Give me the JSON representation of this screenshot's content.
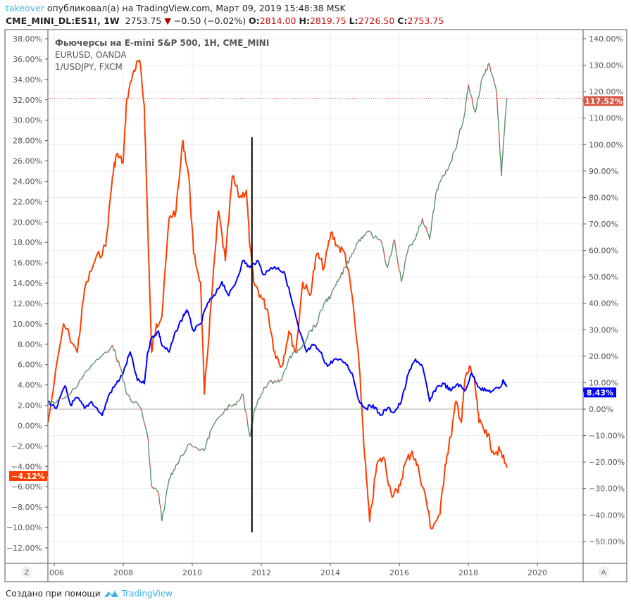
{
  "header": {
    "user": "takeover",
    "published": "опубликовал(а) на TradingView.com, Март 09, 2019 15:48:38 MSK",
    "symbol": "CME_MINI_DL:ES1!, 1W",
    "last": "2753.75",
    "change": "−0.50 (−0.02%)",
    "o_label": "O:",
    "o": "2814.00",
    "h_label": "H:",
    "h": "2819.75",
    "l_label": "L:",
    "l": "2726.50",
    "c_label": "C:",
    "c": "2753.75"
  },
  "footer": {
    "text": "Создано при помощи",
    "brand": "TradingView"
  },
  "axis_buttons": {
    "left": "Z",
    "right": "A"
  },
  "chart_data": {
    "type": "line",
    "legend": [
      "Фьючерсы на E-mini S&P 500, 1H, CME_MINI",
      "EURUSD, OANDA",
      "1/USDJPY, FXCM"
    ],
    "legend_position": "top-left",
    "xlim": [
      2005.8,
      2021.2
    ],
    "x_ticks": [
      "006",
      "2008",
      "2010",
      "2012",
      "2014",
      "2016",
      "2018",
      "2020"
    ],
    "x_tick_values": [
      2006,
      2008,
      2010,
      2012,
      2014,
      2016,
      2018,
      2020
    ],
    "left_axis": {
      "ylim": [
        -13,
        39
      ],
      "ticks": [
        38,
        36,
        34,
        32,
        30,
        28,
        26,
        24,
        22,
        20,
        18,
        16,
        14,
        12,
        10,
        8,
        6,
        4,
        2,
        0,
        -2,
        -4,
        -6,
        -8,
        -10,
        -12
      ],
      "labels": [
        "38.00%",
        "36.00%",
        "34.00%",
        "32.00%",
        "30.00%",
        "28.00%",
        "26.00%",
        "24.00%",
        "22.00%",
        "20.00%",
        "18.00%",
        "16.00%",
        "14.00%",
        "12.00%",
        "10.00%",
        "8.00%",
        "6.00%",
        "4.00%",
        "2.00%",
        "0.00%",
        "−2.00%",
        "−4.00%",
        "−6.00%",
        "−8.00%",
        "−10.00%",
        "−12.00%"
      ]
    },
    "right_axis": {
      "ylim": [
        -58.2,
        143.5
      ],
      "ticks": [
        140,
        130,
        120,
        110,
        100,
        90,
        80,
        70,
        60,
        50,
        40,
        30,
        20,
        10,
        0,
        -10,
        -20,
        -30,
        -40,
        -50
      ],
      "labels": [
        "140.00%",
        "130.00%",
        "120.00%",
        "110.00%",
        "100.00%",
        "90.00%",
        "80.00%",
        "70.00%",
        "60.00%",
        "50.00%",
        "40.00%",
        "30.00%",
        "20.00%",
        "10.00%",
        "0.00%",
        "−10.00%",
        "−20.00%",
        "−30.00%",
        "−40.00%",
        "−50.00%"
      ]
    },
    "vertical_marker_year": 2011.73,
    "series": [
      {
        "name": "1/USDJPY, FXCM",
        "axis": "left",
        "color": "#ff3d00",
        "last_label": "−4.12%",
        "last": -4.12,
        "x": [
          2005.82,
          2006.27,
          2006.67,
          2006.88,
          2007.18,
          2007.49,
          2007.69,
          2007.8,
          2008,
          2008.1,
          2008.31,
          2008.47,
          2008.61,
          2008.71,
          2008.82,
          2008.96,
          2009.12,
          2009.33,
          2009.53,
          2009.73,
          2009.9,
          2010.04,
          2010.24,
          2010.35,
          2010.55,
          2010.76,
          2010.96,
          2011.16,
          2011.37,
          2011.57,
          2011.67,
          2011.78,
          2011.98,
          2012.18,
          2012.39,
          2012.59,
          2012.8,
          2013,
          2013.2,
          2013.41,
          2013.61,
          2013.82,
          2014.02,
          2014.22,
          2014.43,
          2014.63,
          2014.84,
          2015,
          2015.14,
          2015.35,
          2015.55,
          2015.76,
          2015.96,
          2016.16,
          2016.37,
          2016.57,
          2016.78,
          2016.92,
          2017.18,
          2017.33,
          2017.49,
          2017.65,
          2017.8,
          2017.9,
          2018.06,
          2018.2,
          2018.31,
          2018.51,
          2018.71,
          2018.92,
          2019.12
        ],
        "y": [
          0.3,
          10,
          7.2,
          13.4,
          16.2,
          17.6,
          24.5,
          26.6,
          25.9,
          32.1,
          34.9,
          35.9,
          31.4,
          19.7,
          7.2,
          10,
          10.7,
          20.4,
          21.1,
          28,
          24.5,
          16.9,
          14.1,
          3.1,
          12.1,
          21.1,
          16.2,
          24.5,
          22.4,
          23.1,
          17.6,
          14.1,
          12.8,
          11.4,
          7.2,
          5.8,
          9.3,
          7.2,
          14.1,
          12.8,
          16.9,
          15.5,
          19,
          17.6,
          16.9,
          12.8,
          5.8,
          -3.1,
          -9.4,
          -3.8,
          -3.1,
          -6.6,
          -6.6,
          -3.8,
          -2.5,
          -4.5,
          -7.3,
          -10.1,
          -8.7,
          -3.8,
          -1.1,
          2.4,
          0.3,
          4.5,
          5.8,
          3.8,
          0.3,
          -0.4,
          -2.5,
          -2.5,
          -4.12
        ]
      },
      {
        "name": "EURUSD, OANDA",
        "axis": "right",
        "color": "#0000ff",
        "last_label": "8.43%",
        "last": 8.43,
        "x": [
          2005.82,
          2006.06,
          2006.31,
          2006.47,
          2006.67,
          2006.88,
          2007.08,
          2007.39,
          2007.59,
          2007.8,
          2008,
          2008.2,
          2008.41,
          2008.61,
          2008.71,
          2008.82,
          2009.02,
          2009.12,
          2009.33,
          2009.53,
          2009.73,
          2009.84,
          2010.04,
          2010.24,
          2010.45,
          2010.65,
          2010.86,
          2011.06,
          2011.27,
          2011.47,
          2011.67,
          2011.88,
          2012.08,
          2012.29,
          2012.49,
          2012.69,
          2012.9,
          2013.1,
          2013.31,
          2013.51,
          2013.71,
          2013.92,
          2014.12,
          2014.43,
          2014.63,
          2014.84,
          2015.04,
          2015.24,
          2015.45,
          2015.65,
          2015.86,
          2016.06,
          2016.27,
          2016.47,
          2016.67,
          2016.88,
          2017.08,
          2017.29,
          2017.49,
          2017.69,
          2017.9,
          2018.1,
          2018.31,
          2018.51,
          2018.71,
          2018.92,
          2019.02,
          2019.12
        ],
        "y": [
          2.9,
          0.3,
          8.8,
          1.6,
          4.3,
          0.3,
          2.9,
          -2.4,
          5.6,
          9.6,
          13.6,
          21.6,
          10.9,
          9.6,
          21.6,
          26.9,
          29.5,
          24.2,
          21.6,
          29.5,
          34.9,
          37.5,
          29.5,
          32.2,
          40.2,
          42.9,
          48.2,
          42.9,
          48.2,
          56.2,
          53.5,
          56.2,
          50.8,
          53.5,
          53.5,
          50.8,
          40.2,
          29.5,
          21.6,
          24.2,
          21.6,
          16.2,
          18.9,
          17.6,
          13.6,
          2.9,
          0.3,
          1.6,
          -2.4,
          0.3,
          -1.1,
          2.9,
          13.6,
          18.9,
          16.2,
          2.9,
          8.3,
          9.6,
          6.9,
          9.6,
          6.9,
          13.6,
          8.3,
          6.9,
          6.9,
          8.3,
          10.9,
          8.43
        ]
      },
      {
        "name": "Фьючерсы на E-mini S&P 500, 1H, CME_MINI",
        "axis": "right",
        "color": "#5b8f6a",
        "down_color": "#d6584a",
        "last_label": "117.52%",
        "last": 117.52,
        "x": [
          2005.82,
          2006.47,
          2006.88,
          2007.29,
          2007.69,
          2007.9,
          2008.1,
          2008.51,
          2008.71,
          2008.82,
          2009.02,
          2009.12,
          2009.33,
          2009.53,
          2009.94,
          2010.35,
          2010.55,
          2010.96,
          2011.27,
          2011.47,
          2011.67,
          2011.82,
          2012.08,
          2012.39,
          2012.59,
          2012.8,
          2013,
          2013.2,
          2013.41,
          2013.61,
          2013.82,
          2014.02,
          2014.22,
          2014.43,
          2014.63,
          2014.84,
          2015.04,
          2015.45,
          2015.65,
          2015.86,
          2016.06,
          2016.27,
          2016.47,
          2016.67,
          2016.88,
          2017.08,
          2017.29,
          2017.49,
          2017.69,
          2017.9,
          2018,
          2018.2,
          2018.41,
          2018.61,
          2018.82,
          2018.96,
          2019.02,
          2019.12
        ],
        "y": [
          1.6,
          5.6,
          13.6,
          18.9,
          24.2,
          16.2,
          5.6,
          0.3,
          -10.4,
          -29,
          -31.7,
          -42.3,
          -26.4,
          -21,
          -13,
          -15.7,
          -7.7,
          0.3,
          1.6,
          5.6,
          -10.4,
          0.3,
          8.3,
          10.9,
          10.9,
          18.9,
          21.6,
          24.2,
          29.5,
          32.2,
          40.2,
          42.9,
          48.2,
          53.5,
          58.8,
          64.1,
          66.8,
          64.1,
          53.5,
          64.1,
          48.2,
          61.5,
          64.1,
          72.1,
          64.1,
          82.8,
          88.1,
          93.4,
          101.4,
          112.1,
          122.7,
          112.1,
          125.4,
          130.7,
          120,
          88.1,
          101.4,
          117.52
        ]
      }
    ]
  }
}
